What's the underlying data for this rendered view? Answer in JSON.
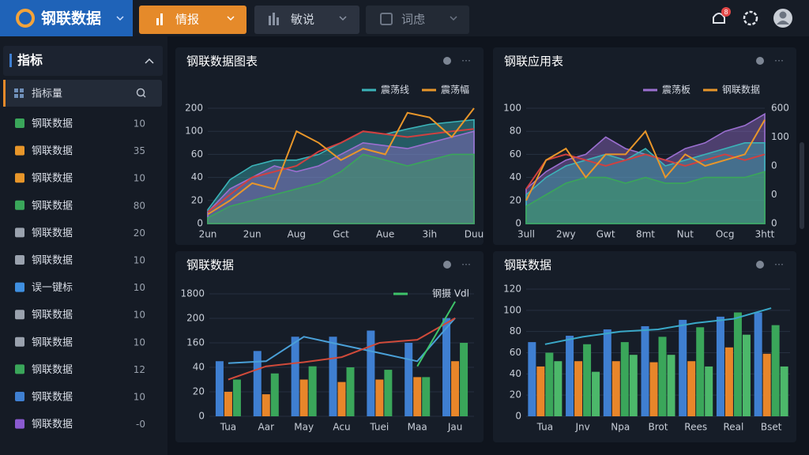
{
  "header": {
    "logo": "钢联数据",
    "tabs": [
      "情报",
      "敏说",
      "词虑"
    ],
    "badge": "8"
  },
  "sidebar": {
    "title": "指标",
    "search": "指标量",
    "items": [
      {
        "label": "钢联数据",
        "count": "10"
      },
      {
        "label": "钢联数据",
        "count": "35"
      },
      {
        "label": "钢联数据",
        "count": "10"
      },
      {
        "label": "钢联数据",
        "count": "80"
      },
      {
        "label": "钢联数据",
        "count": "20"
      },
      {
        "label": "钢联数据",
        "count": "10"
      },
      {
        "label": "误一键标",
        "count": "10"
      },
      {
        "label": "钢联数据",
        "count": "10"
      },
      {
        "label": "钢联数据",
        "count": "10"
      },
      {
        "label": "钢联数据",
        "count": "12"
      },
      {
        "label": "钢联数据",
        "count": "10"
      },
      {
        "label": "钢联数据",
        "count": "-0"
      }
    ]
  },
  "charts": [
    {
      "type": "area",
      "title": "钢联数据图表",
      "categories": [
        "2un",
        null,
        "2un",
        null,
        "Aug",
        null,
        "Gct",
        null,
        "Aue",
        null,
        "3ih",
        null,
        "Duu"
      ],
      "ylim": [
        0,
        200
      ],
      "yticks": [
        0,
        20,
        40,
        60,
        100,
        200
      ],
      "grid": true,
      "series": [
        {
          "name": "震荡线",
          "color": "#3bb3b8",
          "kind": "area",
          "values": [
            12,
            38,
            50,
            55,
            55,
            60,
            80,
            100,
            95,
            110,
            130,
            140,
            150
          ]
        },
        {
          "color": "#9b6fd0",
          "kind": "area",
          "values": [
            10,
            30,
            40,
            50,
            45,
            50,
            60,
            80,
            75,
            70,
            80,
            90,
            100
          ]
        },
        {
          "color": "#3aa65a",
          "kind": "area",
          "values": [
            5,
            15,
            20,
            25,
            30,
            35,
            45,
            60,
            55,
            50,
            55,
            60,
            60
          ]
        },
        {
          "color": "#d04040",
          "kind": "line",
          "values": [
            10,
            25,
            40,
            45,
            50,
            65,
            80,
            100,
            95,
            90,
            95,
            100,
            110
          ]
        },
        {
          "name": "震荡幅",
          "color": "#e8962a",
          "kind": "line",
          "values": [
            8,
            20,
            35,
            30,
            100,
            80,
            55,
            70,
            60,
            180,
            160,
            90,
            200
          ]
        }
      ]
    },
    {
      "type": "area",
      "title": "钢联应用表",
      "categories": [
        "3ull",
        null,
        "2wy",
        null,
        "Gwt",
        null,
        "8mt",
        null,
        "Nut",
        null,
        "Ocg",
        null,
        "3htt"
      ],
      "ylim": [
        0,
        100
      ],
      "yticks": [
        0,
        20,
        40,
        60,
        80,
        100
      ],
      "grid": true,
      "y2labels": [
        "0",
        "0",
        "0",
        "100",
        "600"
      ],
      "series": [
        {
          "name": "震荡板",
          "color": "#9b6fd0",
          "kind": "area",
          "values": [
            30,
            45,
            55,
            60,
            75,
            65,
            60,
            55,
            65,
            70,
            80,
            85,
            95
          ]
        },
        {
          "color": "#3bb3b8",
          "kind": "area",
          "values": [
            25,
            40,
            50,
            55,
            60,
            55,
            65,
            50,
            55,
            60,
            65,
            70,
            70
          ]
        },
        {
          "color": "#3aa65a",
          "kind": "area",
          "values": [
            15,
            25,
            35,
            40,
            40,
            35,
            40,
            35,
            35,
            40,
            40,
            40,
            45
          ]
        },
        {
          "color": "#d04040",
          "kind": "line",
          "values": [
            30,
            55,
            60,
            55,
            50,
            55,
            60,
            55,
            50,
            55,
            60,
            55,
            60
          ]
        },
        {
          "name": "钢联数据",
          "color": "#e8962a",
          "kind": "line",
          "values": [
            20,
            55,
            65,
            40,
            60,
            60,
            80,
            40,
            60,
            50,
            55,
            60,
            90
          ]
        }
      ]
    },
    {
      "type": "bar",
      "title": "钢联数据",
      "categories": [
        "Tua",
        "Aar",
        "May",
        "Acu",
        "Tuei",
        "Maa",
        "Jau"
      ],
      "ylim": [
        0,
        1800
      ],
      "yticks": [
        0,
        20,
        40,
        160,
        200,
        1800
      ],
      "grid": true,
      "series": [
        {
          "color": "#3f7fd1",
          "kind": "bar",
          "values": [
            70,
            120,
            170,
            170,
            180,
            160,
            220
          ]
        },
        {
          "color": "#e8862a",
          "kind": "bar",
          "values": [
            20,
            18,
            30,
            28,
            30,
            32,
            70
          ]
        },
        {
          "color": "#3aa65a",
          "kind": "bar",
          "values": [
            30,
            35,
            45,
            40,
            38,
            32,
            160
          ]
        },
        {
          "color": "#4aa0d8",
          "kind": "line",
          "values": [
            60,
            70,
            170,
            150,
            110,
            70,
            220
          ]
        },
        {
          "color": "#d04a3a",
          "kind": "line",
          "values": [
            30,
            45,
            65,
            90,
            160,
            165,
            210
          ]
        },
        {
          "name": "钢摄 Vdl",
          "color": "#3ec46a",
          "kind": "line",
          "values": [
            null,
            null,
            null,
            null,
            null,
            45,
            1300
          ]
        }
      ]
    },
    {
      "type": "bar",
      "title": "钢联数据",
      "categories": [
        "Tua",
        "Jnv",
        "Npa",
        "Brot",
        "Rees",
        "Real",
        "Bset"
      ],
      "ylim": [
        0,
        120
      ],
      "yticks": [
        0,
        20,
        40,
        60,
        80,
        100,
        120
      ],
      "grid": true,
      "series": [
        {
          "color": "#3f7fd1",
          "kind": "bar",
          "values": [
            70,
            76,
            82,
            85,
            91,
            94,
            98
          ]
        },
        {
          "color": "#e8862a",
          "kind": "bar",
          "values": [
            47,
            52,
            52,
            51,
            52,
            65,
            59
          ]
        },
        {
          "color": "#3aa65a",
          "kind": "bar",
          "values": [
            60,
            68,
            70,
            75,
            84,
            98,
            86
          ]
        },
        {
          "color": "#4cb86a",
          "kind": "bar",
          "values": [
            52,
            42,
            58,
            58,
            47,
            77,
            47
          ]
        },
        {
          "color": "#3aa8c8",
          "kind": "line",
          "values": [
            68,
            75,
            80,
            82,
            88,
            92,
            102
          ]
        }
      ]
    }
  ]
}
